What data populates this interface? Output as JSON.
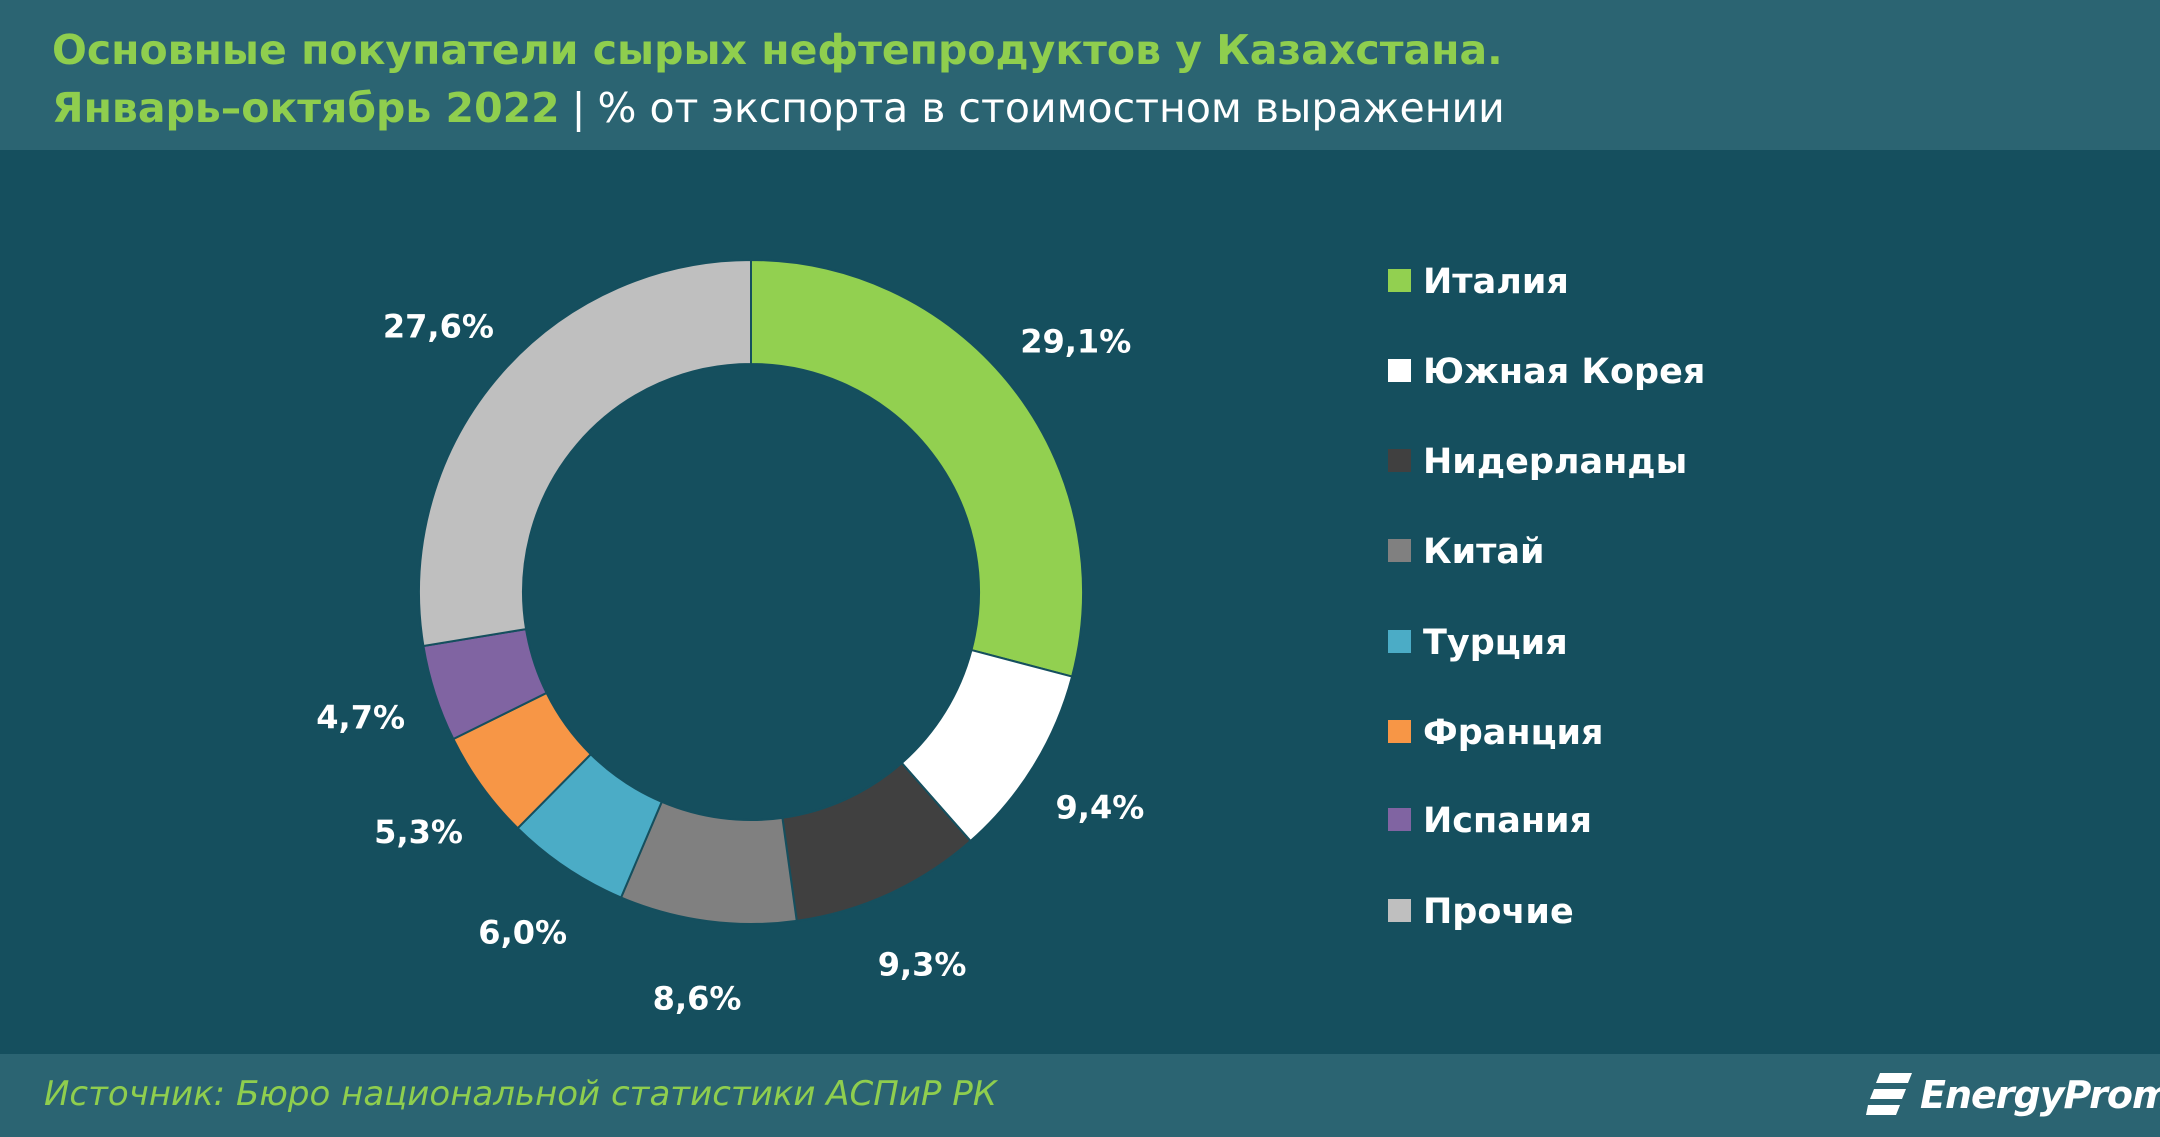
{
  "header": {
    "title_line1": "Основные покупатели сырых нефтепродуктов у Казахстана.",
    "title_line2_period": "Январь–октябрь 2022",
    "title_line2_separator": "|",
    "title_line2_unit": "% от экспорта в стоимостном выражении"
  },
  "chart_data": {
    "type": "pie",
    "title": "Основные покупатели сырых нефтепродуктов у Казахстана.",
    "subtitle": "Январь–октябрь 2022 | % от экспорта в стоимостном выражении",
    "donut": true,
    "legend_position": "right",
    "categories": [
      "Италия",
      "Южная Корея",
      "Нидерланды",
      "Китай",
      "Турция",
      "Франция",
      "Испания",
      "Прочие"
    ],
    "values": [
      29.1,
      9.4,
      9.3,
      8.6,
      6.0,
      5.3,
      4.7,
      27.6
    ],
    "labels": [
      "29,1%",
      "9,4%",
      "9,3%",
      "8,6%",
      "6,0%",
      "5,3%",
      "4,7%",
      "27,6%"
    ],
    "colors": [
      "#92d050",
      "#ffffff",
      "#404040",
      "#808080",
      "#4bacc6",
      "#f79646",
      "#8064a2",
      "#bfbfbf"
    ]
  },
  "legend": {
    "items": [
      {
        "label": "Италия",
        "color": "#92d050"
      },
      {
        "label": "Южная Корея",
        "color": "#ffffff"
      },
      {
        "label": "Нидерланды",
        "color": "#404040"
      },
      {
        "label": "Китай",
        "color": "#808080"
      },
      {
        "label": "Турция",
        "color": "#4bacc6"
      },
      {
        "label": "Франция",
        "color": "#f79646"
      },
      {
        "label": "Испания",
        "color": "#8064a2"
      },
      {
        "label": "Прочие",
        "color": "#bfbfbf"
      }
    ]
  },
  "footer": {
    "source": "Источник: Бюро национальной статистики АСПиР РК",
    "logo_text": "EnergyProm"
  }
}
